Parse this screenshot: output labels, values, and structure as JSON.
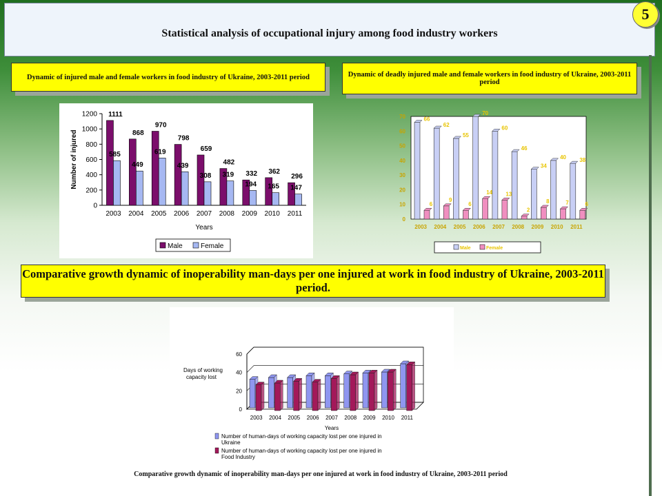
{
  "slide": {
    "title": "Statistical analysis of occupational injury among food industry workers",
    "page_number": "5",
    "box1": "Dynamic of injured male and female workers in food industry  of Ukraine, 2003-2011 period",
    "box2": "Dynamic of deadly injured male and female workers in food industry of Ukraine, 2003-2011 period",
    "box3": "Comparative growth dynamic of inoperability man-days per one injured at work in food industry of Ukraine, 2003-2011 period.",
    "caption": "Comparative growth dynamic of inoperability man-days per one injured at work in food industry  of Ukraine, 2003-2011 period"
  },
  "chart_data": [
    {
      "type": "bar",
      "categories": [
        "2003",
        "2004",
        "2005",
        "2006",
        "2007",
        "2008",
        "2009",
        "2010",
        "2011"
      ],
      "series": [
        {
          "name": "Male",
          "values": [
            1111,
            868,
            970,
            798,
            659,
            482,
            332,
            362,
            296
          ],
          "color": "#7b0e6b"
        },
        {
          "name": "Female",
          "values": [
            585,
            449,
            619,
            439,
            308,
            319,
            194,
            165,
            147
          ],
          "color": "#a6b8f2"
        }
      ],
      "xlabel": "Years",
      "ylabel": "Number of injured",
      "ylim": [
        0,
        1200
      ],
      "yticks": [
        0,
        200,
        400,
        600,
        800,
        1000,
        1200
      ],
      "legend": "bottom"
    },
    {
      "type": "bar",
      "categories": [
        "2003",
        "2004",
        "2005",
        "2006",
        "2007",
        "2008",
        "2009",
        "2010",
        "2011"
      ],
      "series": [
        {
          "name": "Male",
          "values": [
            66,
            62,
            55,
            70,
            60,
            46,
            34,
            40,
            38
          ],
          "color": "#c8cff5"
        },
        {
          "name": "Female",
          "values": [
            6,
            9,
            6,
            14,
            13,
            2,
            8,
            7,
            6
          ],
          "color": "#f08fc0"
        }
      ],
      "ylim": [
        0,
        70
      ],
      "yticks": [
        0,
        10,
        20,
        30,
        40,
        50,
        60,
        70
      ],
      "legend": "bottom",
      "three_d": true
    },
    {
      "type": "bar",
      "categories": [
        "2003",
        "2004",
        "2005",
        "2006",
        "2007",
        "2008",
        "2009",
        "2010",
        "2011"
      ],
      "series": [
        {
          "name": "Number of human-days of working capacity lost per one injured in Ukraine",
          "values": [
            31,
            33,
            33,
            35,
            35,
            37,
            38,
            39,
            48
          ],
          "color": "#8f96f0"
        },
        {
          "name": "Number of human-days of working capacity lost per one injured in Food Industry",
          "values": [
            28,
            30,
            32,
            31,
            35,
            39,
            41,
            42,
            50
          ],
          "color": "#a3195a"
        }
      ],
      "xlabel": "Years",
      "ylabel": "Days of working capacity lost",
      "ylim": [
        0,
        60
      ],
      "yticks": [
        0,
        20,
        40,
        60
      ],
      "legend": "bottom",
      "three_d": true
    }
  ]
}
